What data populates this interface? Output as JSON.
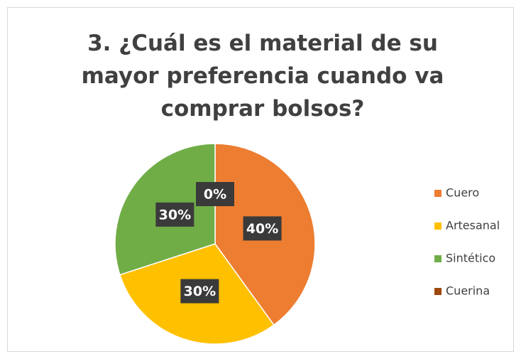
{
  "chart_data": {
    "type": "pie",
    "title": "3. ¿Cuál es el material de su mayor preferencia cuando va comprar bolsos?",
    "categories": [
      "Cuero",
      "Artesanal",
      "Sintético",
      "Cuerina"
    ],
    "values": [
      40,
      30,
      30,
      0
    ],
    "value_labels": [
      "40%",
      "30%",
      "30%",
      "0%"
    ],
    "colors": [
      "#ED7D31",
      "#FFC000",
      "#70AD47",
      "#9E480E"
    ],
    "legend": "right"
  }
}
